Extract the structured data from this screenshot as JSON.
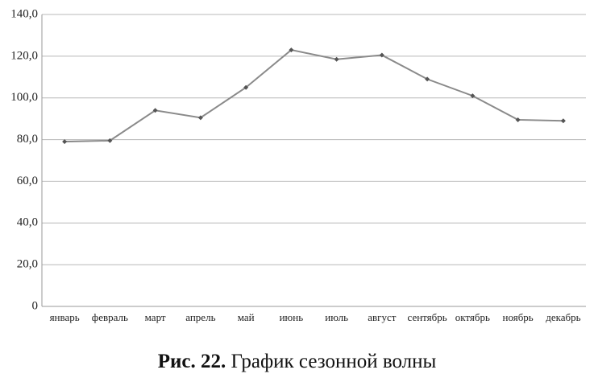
{
  "chart_data": {
    "type": "line",
    "caption_label": "Рис. 22.",
    "title": "График сезонной волны",
    "categories": [
      "январь",
      "февраль",
      "март",
      "апрель",
      "май",
      "июнь",
      "июль",
      "август",
      "сентябрь",
      "октябрь",
      "ноябрь",
      "декабрь"
    ],
    "values": [
      79,
      79.5,
      94,
      90.5,
      105,
      123,
      118.5,
      120.5,
      109,
      101,
      89.5,
      89
    ],
    "color": "#8a8a8a",
    "marker_color": "#555555",
    "ylim": [
      0,
      140
    ],
    "yticks": [
      0,
      {
        "value": 20,
        "label": "20,0"
      },
      {
        "value": 40,
        "label": "40,0"
      },
      {
        "value": 60,
        "label": "60,0"
      },
      {
        "value": 80,
        "label": "80,0"
      },
      {
        "value": 100,
        "label": "100,0"
      },
      {
        "value": 120,
        "label": "120,0"
      },
      {
        "value": 140,
        "label": "140,0"
      }
    ],
    "grid": true
  }
}
